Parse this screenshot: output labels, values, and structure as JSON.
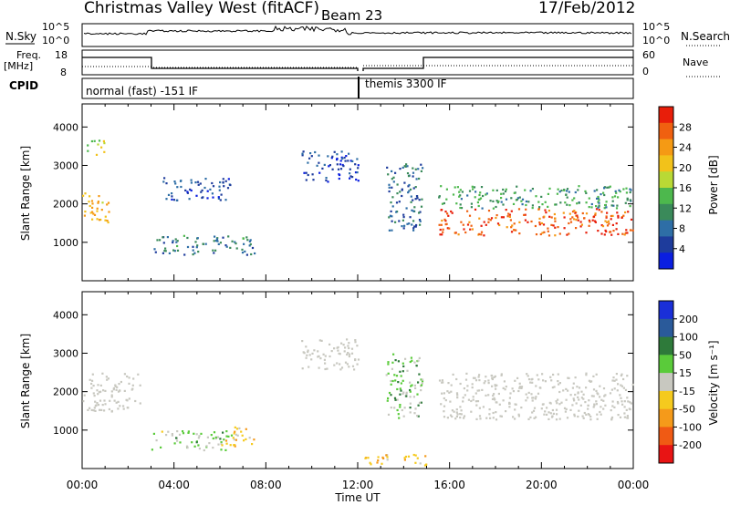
{
  "header": {
    "station": "Christmas Valley West (fitACF)",
    "beam": "Beam 23",
    "date": "17/Feb/2012"
  },
  "strip_labels": {
    "nsky": "N.Sky",
    "nsearch": "N.Search",
    "freq": "Freq.",
    "freq_unit": "[MHz]",
    "nave": "Nave",
    "cpid": "CPID"
  },
  "strip_ticks": {
    "nsky_left": [
      "10^5",
      "10^0"
    ],
    "nsearch_right": [
      "10^5",
      "10^0"
    ],
    "freq_left": [
      "18",
      "8"
    ],
    "nave_right": [
      "60",
      "0"
    ]
  },
  "cpid_modes": [
    {
      "label": "normal (fast) -151 IF",
      "start_hour": 0,
      "end_hour": 12
    },
    {
      "label": "themis 3300 IF",
      "start_hour": 12,
      "end_hour": 24
    }
  ],
  "colors": {
    "power_scale": [
      "#0a1ee0",
      "#1e3c9c",
      "#2e6ea6",
      "#3a8a5a",
      "#4db84d",
      "#b9d935",
      "#f2c21a",
      "#f59a14",
      "#f06010",
      "#e81e0a"
    ],
    "velocity_scale": [
      "#1a2fd8",
      "#2a5a9a",
      "#2e7a3a",
      "#5acb3a",
      "#c8c8c0",
      "#f5ca1e",
      "#f59a1a",
      "#f05a14",
      "#e81414"
    ],
    "ground_scatter": "#c8c8c0"
  },
  "chart_data": [
    {
      "type": "heatmap",
      "name": "power",
      "xlabel": "Time UT",
      "ylabel": "Slant Range [km]",
      "xlim": [
        0,
        24
      ],
      "ylim": [
        0,
        4600
      ],
      "x_ticks": [
        "00:00",
        "04:00",
        "08:00",
        "12:00",
        "16:00",
        "20:00",
        "00:00"
      ],
      "y_ticks": [
        1000,
        2000,
        3000,
        4000
      ],
      "colorbar": {
        "label": "Power [dB]",
        "ticks": [
          "4",
          "8",
          "12",
          "16",
          "20",
          "24",
          "28"
        ],
        "range": [
          0,
          32
        ]
      },
      "echo_bands": [
        {
          "t_start": 0.0,
          "t_end": 1.2,
          "r_low": 1500,
          "r_high": 2300,
          "value": 22
        },
        {
          "t_start": 0.2,
          "t_end": 1.0,
          "r_low": 3300,
          "r_high": 3700,
          "value": 18
        },
        {
          "t_start": 3.0,
          "t_end": 7.5,
          "r_low": 700,
          "r_high": 1200,
          "value": 9
        },
        {
          "t_start": 3.5,
          "t_end": 6.5,
          "r_low": 2100,
          "r_high": 2700,
          "value": 6
        },
        {
          "t_start": 9.5,
          "t_end": 12.0,
          "r_low": 2600,
          "r_high": 3400,
          "value": 5
        },
        {
          "t_start": 15.5,
          "t_end": 24.0,
          "r_low": 1200,
          "r_high": 1900,
          "value": 28
        },
        {
          "t_start": 15.5,
          "t_end": 24.0,
          "r_low": 1900,
          "r_high": 2500,
          "value": 12
        },
        {
          "t_start": 13.2,
          "t_end": 14.8,
          "r_low": 1300,
          "r_high": 3100,
          "value": 8
        }
      ]
    },
    {
      "type": "heatmap",
      "name": "velocity",
      "xlabel": "Time UT",
      "ylabel": "Slant Range [km]",
      "xlim": [
        0,
        24
      ],
      "ylim": [
        0,
        4600
      ],
      "x_ticks": [
        "00:00",
        "04:00",
        "08:00",
        "12:00",
        "16:00",
        "20:00",
        "00:00"
      ],
      "y_ticks": [
        1000,
        2000,
        3000,
        4000
      ],
      "colorbar": {
        "label": "Velocity [m s⁻¹]",
        "ticks": [
          "200",
          "100",
          "50",
          "15",
          "-15",
          "-50",
          "-100",
          "-200"
        ],
        "range": [
          -250,
          250
        ]
      },
      "echo_bands": [
        {
          "t_start": 0.0,
          "t_end": 2.5,
          "r_low": 1500,
          "r_high": 2500,
          "value": 0,
          "ground": true
        },
        {
          "t_start": 3.0,
          "t_end": 6.5,
          "r_low": 500,
          "r_high": 1000,
          "value": 30
        },
        {
          "t_start": 6.0,
          "t_end": 7.5,
          "r_low": 600,
          "r_high": 1100,
          "value": -40
        },
        {
          "t_start": 9.5,
          "t_end": 12.0,
          "r_low": 2600,
          "r_high": 3400,
          "value": 0,
          "ground": true
        },
        {
          "t_start": 15.5,
          "t_end": 24.0,
          "r_low": 1300,
          "r_high": 2500,
          "value": 0,
          "ground": true
        },
        {
          "t_start": 13.2,
          "t_end": 14.8,
          "r_low": 1300,
          "r_high": 3000,
          "value": 40
        },
        {
          "t_start": 12.2,
          "t_end": 15.0,
          "r_low": 100,
          "r_high": 400,
          "value": -60
        }
      ]
    }
  ]
}
